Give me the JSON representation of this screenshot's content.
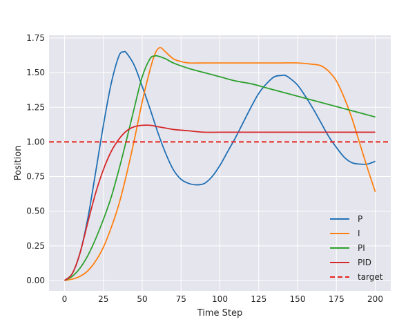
{
  "chart_data": {
    "type": "line",
    "title": "",
    "xlabel": "Time Step",
    "ylabel": "Position",
    "xlim": [
      -10,
      210
    ],
    "ylim": [
      -0.075,
      1.77
    ],
    "xticks": [
      0,
      25,
      50,
      75,
      100,
      125,
      150,
      175,
      200
    ],
    "xtick_labels": [
      "0",
      "25",
      "50",
      "75",
      "100",
      "125",
      "150",
      "175",
      "200"
    ],
    "yticks": [
      0.0,
      0.25,
      0.5,
      0.75,
      1.0,
      1.25,
      1.5,
      1.75
    ],
    "ytick_labels": [
      "0.00",
      "0.25",
      "0.50",
      "0.75",
      "1.00",
      "1.25",
      "1.50",
      "1.75"
    ],
    "grid": true,
    "legend_position": "bottom-right",
    "background": "#e5e5ed",
    "series": [
      {
        "name": "P",
        "color": "#1f6fb4",
        "style": "solid",
        "x": [
          0,
          5,
          10,
          15,
          20,
          25,
          30,
          35,
          38,
          40,
          45,
          50,
          55,
          60,
          65,
          70,
          75,
          80,
          85,
          90,
          95,
          100,
          105,
          110,
          115,
          120,
          125,
          130,
          135,
          140,
          142,
          145,
          150,
          155,
          160,
          165,
          170,
          175,
          180,
          185,
          190,
          195,
          200
        ],
        "y": [
          0.0,
          0.05,
          0.2,
          0.45,
          0.78,
          1.12,
          1.42,
          1.62,
          1.65,
          1.64,
          1.55,
          1.4,
          1.24,
          1.07,
          0.92,
          0.8,
          0.73,
          0.7,
          0.69,
          0.7,
          0.75,
          0.83,
          0.93,
          1.03,
          1.14,
          1.25,
          1.35,
          1.42,
          1.47,
          1.48,
          1.48,
          1.46,
          1.41,
          1.33,
          1.24,
          1.14,
          1.04,
          0.96,
          0.89,
          0.85,
          0.84,
          0.84,
          0.86
        ]
      },
      {
        "name": "I",
        "color": "#ff7f0e",
        "style": "solid",
        "x": [
          0,
          5,
          10,
          15,
          20,
          25,
          30,
          35,
          40,
          45,
          50,
          55,
          58,
          60,
          62,
          65,
          70,
          75,
          80,
          90,
          100,
          110,
          120,
          130,
          140,
          150,
          160,
          165,
          170,
          175,
          180,
          185,
          190,
          195,
          200
        ],
        "y": [
          0.0,
          0.01,
          0.03,
          0.07,
          0.14,
          0.24,
          0.38,
          0.55,
          0.77,
          1.02,
          1.29,
          1.52,
          1.63,
          1.67,
          1.68,
          1.65,
          1.6,
          1.58,
          1.57,
          1.57,
          1.57,
          1.57,
          1.57,
          1.57,
          1.57,
          1.57,
          1.56,
          1.55,
          1.51,
          1.44,
          1.32,
          1.17,
          0.99,
          0.81,
          0.64
        ]
      },
      {
        "name": "PI",
        "color": "#2ca02c",
        "style": "solid",
        "x": [
          0,
          5,
          10,
          15,
          20,
          25,
          30,
          35,
          40,
          45,
          50,
          55,
          58,
          60,
          65,
          70,
          80,
          90,
          100,
          110,
          120,
          130,
          140,
          150,
          160,
          170,
          180,
          190,
          200
        ],
        "y": [
          0.0,
          0.03,
          0.09,
          0.18,
          0.3,
          0.44,
          0.6,
          0.8,
          1.02,
          1.25,
          1.47,
          1.6,
          1.62,
          1.62,
          1.6,
          1.57,
          1.53,
          1.5,
          1.47,
          1.44,
          1.42,
          1.39,
          1.36,
          1.33,
          1.3,
          1.27,
          1.24,
          1.21,
          1.18
        ]
      },
      {
        "name": "PID",
        "color": "#d62728",
        "style": "solid",
        "x": [
          0,
          5,
          10,
          15,
          20,
          25,
          30,
          35,
          40,
          45,
          50,
          55,
          60,
          65,
          70,
          80,
          90,
          100,
          120,
          140,
          160,
          180,
          200
        ],
        "y": [
          0.0,
          0.05,
          0.2,
          0.42,
          0.63,
          0.8,
          0.93,
          1.02,
          1.08,
          1.11,
          1.12,
          1.12,
          1.11,
          1.1,
          1.09,
          1.08,
          1.07,
          1.07,
          1.07,
          1.07,
          1.07,
          1.07,
          1.07
        ]
      },
      {
        "name": "target",
        "color": "#e8231c",
        "style": "dashed",
        "x": [
          -10,
          210
        ],
        "y": [
          1.0,
          1.0
        ]
      }
    ]
  }
}
